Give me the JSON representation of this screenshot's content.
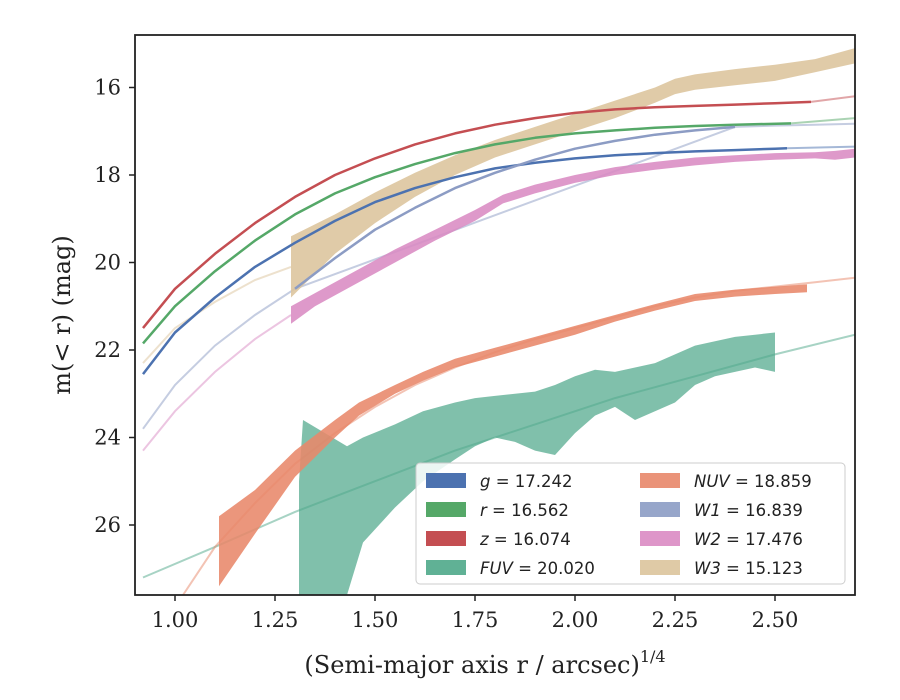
{
  "chart_data": {
    "type": "area",
    "title": "",
    "xlabel": "(Semi-major axis r / arcsec)",
    "xlabel_power": "1/4",
    "ylabel": "m(< r) (mag)",
    "xlim": [
      0.9,
      2.7
    ],
    "ylim": [
      27.6,
      14.8
    ],
    "y_inverted": true,
    "xticks": [
      "1.00",
      "1.25",
      "1.50",
      "1.75",
      "2.00",
      "2.25",
      "2.50"
    ],
    "xtick_values": [
      1.0,
      1.25,
      1.5,
      1.75,
      2.0,
      2.25,
      2.5
    ],
    "yticks": [
      "16",
      "18",
      "20",
      "22",
      "24",
      "26"
    ],
    "ytick_values": [
      16,
      18,
      20,
      22,
      24,
      26
    ],
    "grid": false,
    "legend": {
      "placement": "lower-right",
      "columns": 2
    },
    "series": [
      {
        "name": "g = 17.242",
        "label_var": "g",
        "label_val": "17.242",
        "color": "#4c72b0",
        "line_width": 2.5,
        "x": [
          0.92,
          1.0,
          1.1,
          1.2,
          1.3,
          1.4,
          1.5,
          1.6,
          1.7,
          1.8,
          1.9,
          2.0,
          2.1,
          2.2,
          2.3,
          2.4,
          2.5,
          2.53
        ],
        "y": [
          22.55,
          21.6,
          20.8,
          20.1,
          19.55,
          19.05,
          18.62,
          18.3,
          18.05,
          17.85,
          17.72,
          17.62,
          17.55,
          17.5,
          17.46,
          17.43,
          17.4,
          17.39
        ],
        "model_x": [
          2.53,
          2.7
        ],
        "model_y": [
          17.39,
          17.35
        ]
      },
      {
        "name": "r = 16.562",
        "label_var": "r",
        "label_val": "16.562",
        "color": "#55a868",
        "line_width": 2.5,
        "x": [
          0.92,
          1.0,
          1.1,
          1.2,
          1.3,
          1.4,
          1.5,
          1.6,
          1.7,
          1.8,
          1.9,
          2.0,
          2.1,
          2.2,
          2.3,
          2.4,
          2.54
        ],
        "y": [
          21.85,
          21.0,
          20.2,
          19.5,
          18.9,
          18.42,
          18.05,
          17.75,
          17.5,
          17.3,
          17.15,
          17.05,
          16.98,
          16.92,
          16.88,
          16.85,
          16.82
        ],
        "model_x": [
          2.54,
          2.7
        ],
        "model_y": [
          16.82,
          16.7
        ]
      },
      {
        "name": "z = 16.074",
        "label_var": "z",
        "label_val": "16.074",
        "color": "#c44e52",
        "line_width": 2.5,
        "x": [
          0.92,
          1.0,
          1.1,
          1.2,
          1.3,
          1.4,
          1.5,
          1.6,
          1.7,
          1.8,
          1.9,
          2.0,
          2.1,
          2.2,
          2.3,
          2.4,
          2.5,
          2.59
        ],
        "y": [
          21.5,
          20.6,
          19.8,
          19.1,
          18.5,
          18.0,
          17.62,
          17.3,
          17.05,
          16.85,
          16.7,
          16.58,
          16.5,
          16.45,
          16.42,
          16.39,
          16.36,
          16.33
        ],
        "model_x": [
          2.59,
          2.7
        ],
        "model_y": [
          16.33,
          16.2
        ]
      },
      {
        "name": "FUV = 20.020",
        "label_var": "FUV",
        "label_val": "20.020",
        "color": "#8172b2",
        "fill_color": "#4fa88a",
        "band_x": [
          1.31,
          1.32,
          1.43,
          1.47,
          1.55,
          1.62,
          1.7,
          1.75,
          1.8,
          1.85,
          1.9,
          1.95,
          2.0,
          2.05,
          2.1,
          2.15,
          2.2,
          2.25,
          2.3,
          2.35,
          2.4,
          2.45,
          2.5
        ],
        "band_upper": [
          25.0,
          23.6,
          24.2,
          24.0,
          23.7,
          23.4,
          23.2,
          23.1,
          23.05,
          23.0,
          22.95,
          22.8,
          22.6,
          22.45,
          22.5,
          22.4,
          22.3,
          22.1,
          21.9,
          21.8,
          21.7,
          21.65,
          21.6
        ],
        "band_lower": [
          27.6,
          27.6,
          27.6,
          26.4,
          25.6,
          25.0,
          24.5,
          24.2,
          24.0,
          24.1,
          24.3,
          24.4,
          23.9,
          23.5,
          23.3,
          23.6,
          23.4,
          23.2,
          22.8,
          22.6,
          22.5,
          22.4,
          22.5
        ],
        "model_x": [
          0.92,
          1.1,
          1.3,
          1.5,
          1.7,
          1.9,
          2.1,
          2.3,
          2.5,
          2.7
        ],
        "model_y": [
          27.2,
          26.5,
          25.7,
          25.0,
          24.3,
          23.7,
          23.1,
          22.6,
          22.1,
          21.65
        ]
      },
      {
        "name": "NUV = 18.859",
        "label_var": "NUV",
        "label_val": "18.859",
        "color": "#dd8452",
        "fill_color": "#e8876a",
        "band_x": [
          1.11,
          1.2,
          1.3,
          1.4,
          1.46,
          1.55,
          1.62,
          1.7,
          1.8,
          1.9,
          2.0,
          2.1,
          2.2,
          2.3,
          2.4,
          2.5,
          2.58
        ],
        "band_upper": [
          25.8,
          25.2,
          24.3,
          23.6,
          23.2,
          22.8,
          22.5,
          22.2,
          21.95,
          21.7,
          21.45,
          21.2,
          20.95,
          20.72,
          20.62,
          20.55,
          20.5
        ],
        "band_lower": [
          27.4,
          26.2,
          24.9,
          24.0,
          23.5,
          23.0,
          22.7,
          22.4,
          22.15,
          21.9,
          21.65,
          21.35,
          21.1,
          20.88,
          20.78,
          20.72,
          20.68
        ],
        "model_x": [
          1.02,
          1.1,
          1.2,
          1.3,
          1.4,
          1.5,
          1.6,
          1.7,
          1.8,
          1.9,
          2.0,
          2.1,
          2.2,
          2.3,
          2.4,
          2.5,
          2.6,
          2.7
        ],
        "model_y": [
          27.6,
          26.5,
          25.5,
          24.6,
          23.9,
          23.3,
          22.8,
          22.4,
          22.05,
          21.75,
          21.5,
          21.25,
          21.0,
          20.8,
          20.65,
          20.55,
          20.45,
          20.35
        ]
      },
      {
        "name": "W1 = 16.839",
        "label_var": "W1",
        "label_val": "16.839",
        "color": "#8c9cc4",
        "fill_color": "#8c9cc4",
        "line_width": 2.5,
        "x": [
          1.3,
          1.4,
          1.5,
          1.6,
          1.7,
          1.8,
          1.9,
          2.0,
          2.1,
          2.2,
          2.3,
          2.4
        ],
        "y": [
          20.6,
          19.9,
          19.25,
          18.75,
          18.3,
          17.95,
          17.65,
          17.4,
          17.22,
          17.08,
          16.98,
          16.9
        ],
        "model_x": [
          0.92,
          1.0,
          1.1,
          1.2,
          1.3,
          2.4,
          2.5,
          2.6,
          2.7
        ],
        "model_y": [
          23.8,
          22.8,
          21.9,
          21.2,
          20.6,
          16.9,
          16.87,
          16.85,
          16.83
        ]
      },
      {
        "name": "W2 = 17.476",
        "label_var": "W2",
        "label_val": "17.476",
        "color": "#da8bc3",
        "fill_color": "#da8bc3",
        "band_x": [
          1.29,
          1.35,
          1.45,
          1.55,
          1.65,
          1.75,
          1.82,
          1.9,
          2.0,
          2.1,
          2.2,
          2.3,
          2.4,
          2.5,
          2.6,
          2.65,
          2.7
        ],
        "band_upper": [
          21.0,
          20.7,
          20.2,
          19.7,
          19.25,
          18.8,
          18.45,
          18.22,
          18.0,
          17.82,
          17.7,
          17.6,
          17.55,
          17.5,
          17.48,
          17.45,
          17.4
        ],
        "band_lower": [
          21.4,
          21.0,
          20.5,
          20.0,
          19.5,
          19.05,
          18.65,
          18.42,
          18.18,
          18.0,
          17.88,
          17.78,
          17.7,
          17.65,
          17.62,
          17.65,
          17.6
        ],
        "model_x": [
          0.92,
          1.0,
          1.1,
          1.2,
          1.29
        ],
        "model_y": [
          24.3,
          23.4,
          22.5,
          21.75,
          21.2
        ]
      },
      {
        "name": "W3 = 15.123",
        "label_var": "W3",
        "label_val": "15.123",
        "color": "#ccb974",
        "fill_color": "#dcc49c",
        "band_x": [
          1.29,
          1.4,
          1.5,
          1.6,
          1.7,
          1.8,
          1.9,
          2.0,
          2.1,
          2.2,
          2.25,
          2.3,
          2.4,
          2.5,
          2.6,
          2.7
        ],
        "band_upper": [
          19.4,
          18.9,
          18.4,
          17.95,
          17.55,
          17.2,
          16.9,
          16.6,
          16.3,
          16.0,
          15.8,
          15.7,
          15.58,
          15.48,
          15.35,
          15.1
        ],
        "band_lower": [
          20.8,
          19.8,
          19.1,
          18.5,
          18.0,
          17.6,
          17.3,
          17.0,
          16.7,
          16.35,
          16.15,
          16.05,
          15.95,
          15.85,
          15.65,
          15.45
        ],
        "model_x": [
          0.92,
          1.0,
          1.1,
          1.2,
          1.29
        ],
        "model_y": [
          22.3,
          21.5,
          20.9,
          20.4,
          20.1
        ]
      }
    ]
  }
}
